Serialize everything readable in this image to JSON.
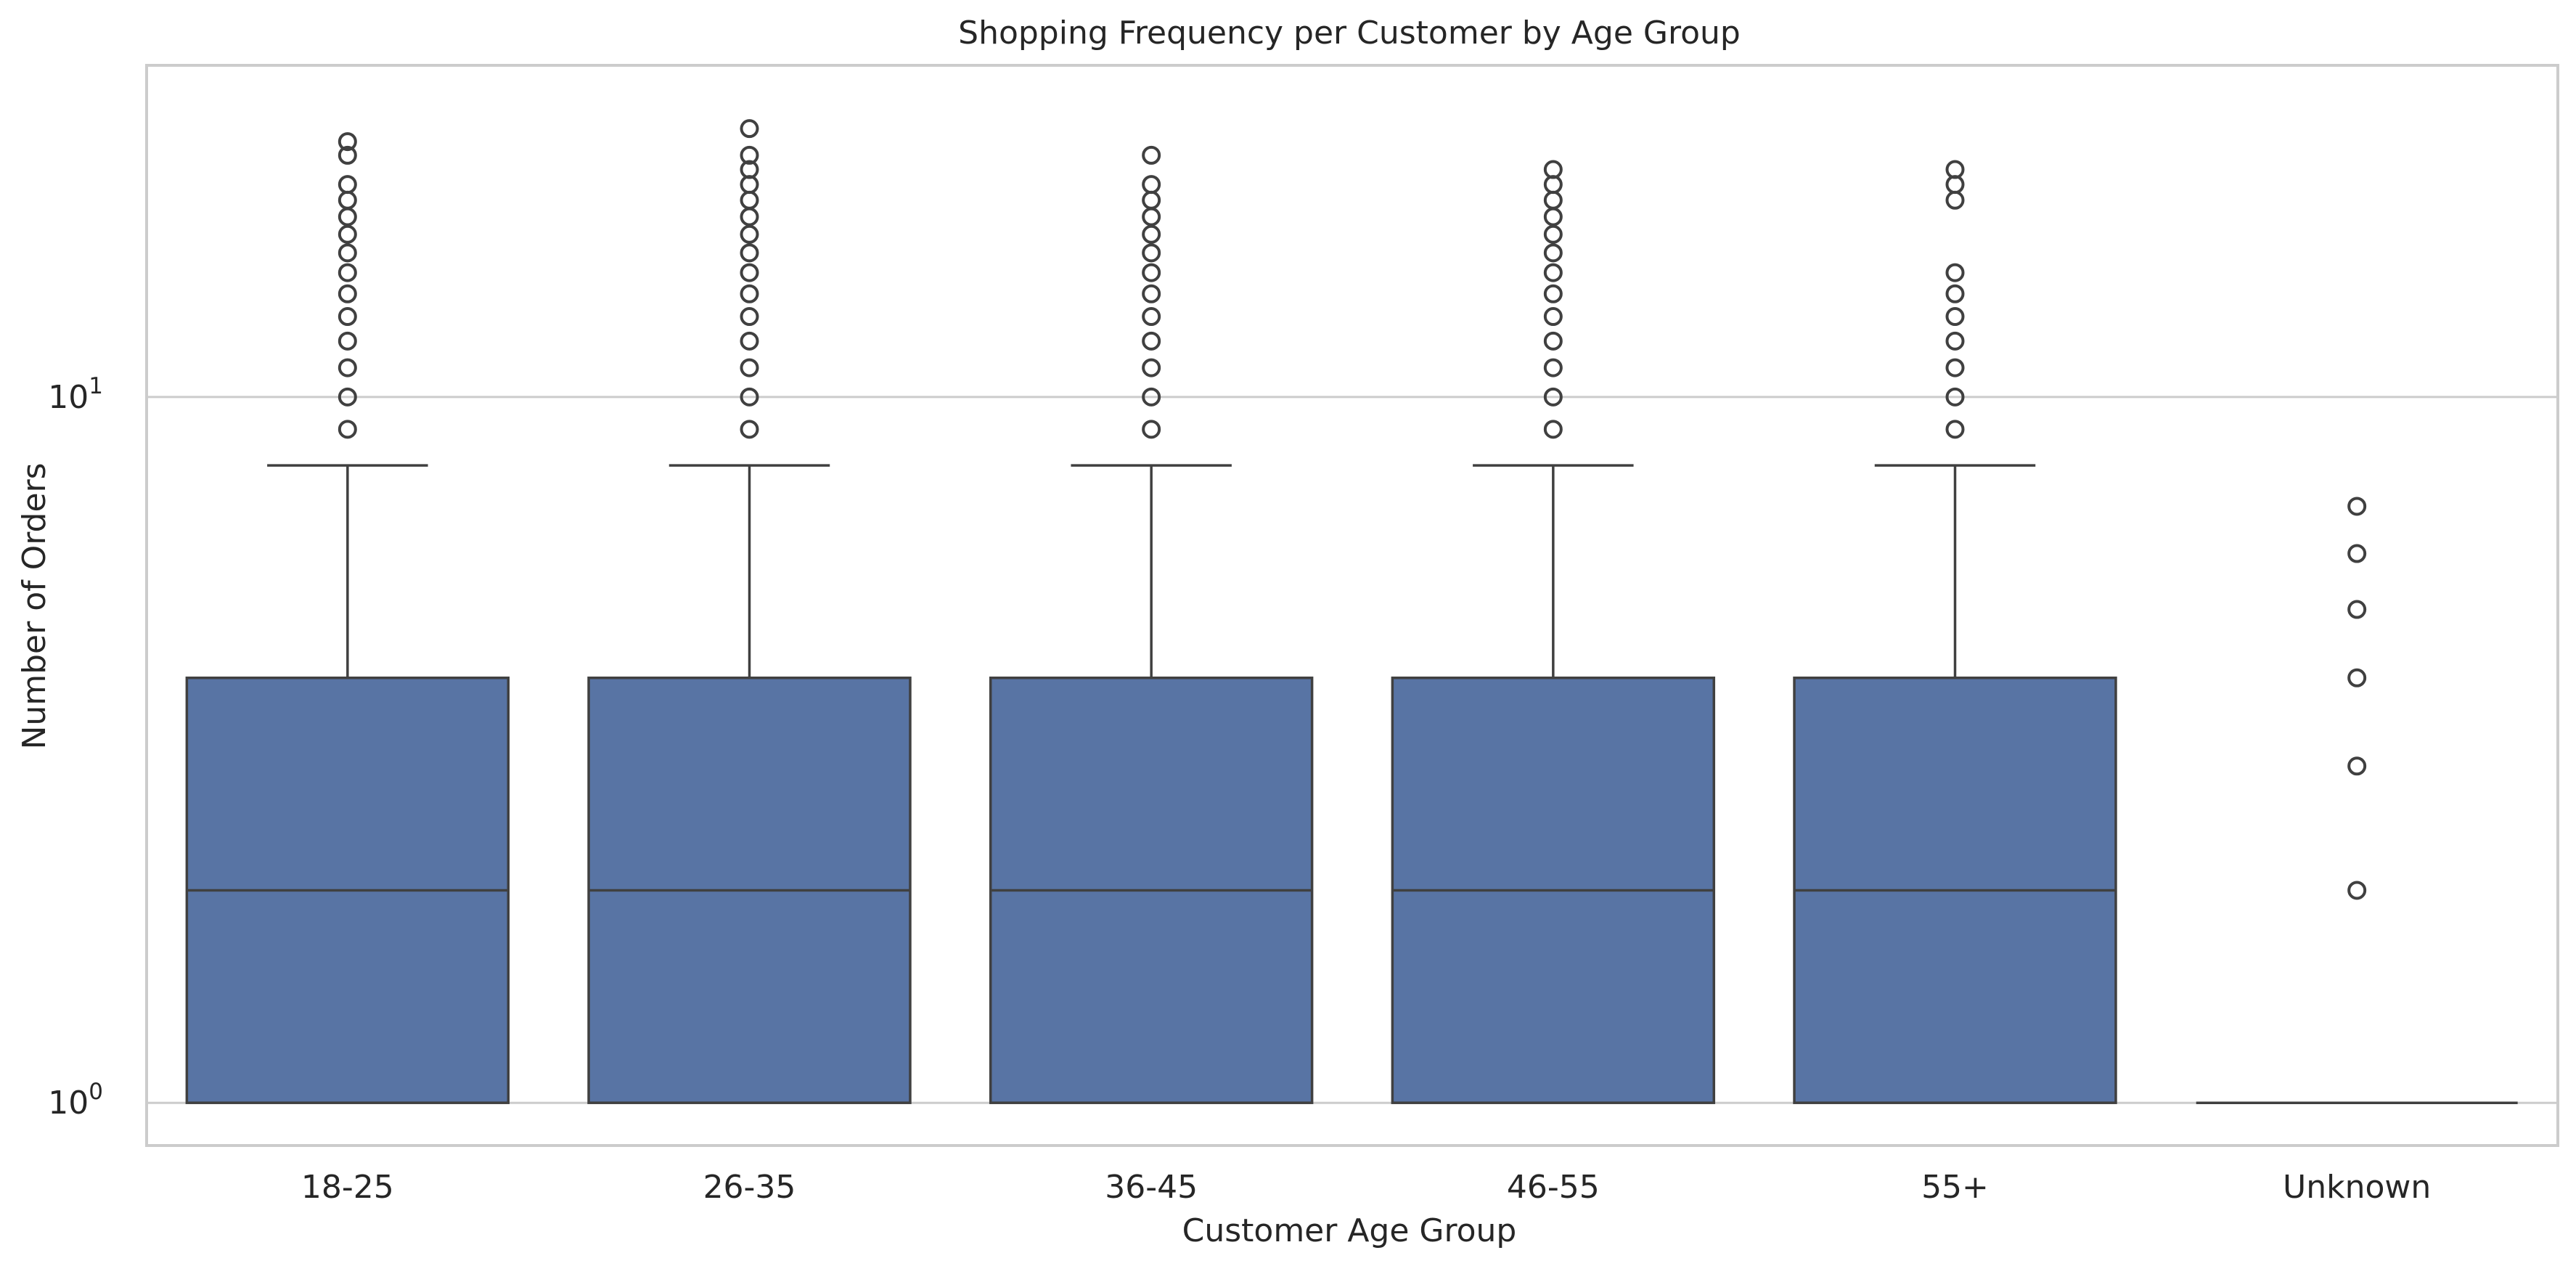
{
  "chart_data": {
    "type": "box",
    "title": "Shopping Frequency per Customer by Age Group",
    "xlabel": "Customer Age Group",
    "ylabel": "Number of Orders",
    "yscale": "log",
    "ylim": [
      0.87,
      29.5
    ],
    "yticks": [
      {
        "value": 1,
        "base": "10",
        "exp": "0"
      },
      {
        "value": 10,
        "base": "10",
        "exp": "1"
      }
    ],
    "grid": "y",
    "box_color": "#5874a4",
    "line_color": "#404040",
    "categories": [
      "18-25",
      "26-35",
      "36-45",
      "46-55",
      "55+",
      "Unknown"
    ],
    "boxes": [
      {
        "category": "18-25",
        "whislo": 1,
        "q1": 1,
        "median": 2,
        "q3": 4,
        "whishi": 8,
        "outliers": [
          9,
          10,
          11,
          12,
          13,
          14,
          15,
          16,
          17,
          18,
          19,
          20,
          22,
          23
        ]
      },
      {
        "category": "26-35",
        "whislo": 1,
        "q1": 1,
        "median": 2,
        "q3": 4,
        "whishi": 8,
        "outliers": [
          9,
          10,
          11,
          12,
          13,
          14,
          15,
          16,
          17,
          18,
          19,
          20,
          21,
          22,
          24
        ]
      },
      {
        "category": "36-45",
        "whislo": 1,
        "q1": 1,
        "median": 2,
        "q3": 4,
        "whishi": 8,
        "outliers": [
          9,
          10,
          11,
          12,
          13,
          14,
          15,
          16,
          17,
          18,
          19,
          20,
          22
        ]
      },
      {
        "category": "46-55",
        "whislo": 1,
        "q1": 1,
        "median": 2,
        "q3": 4,
        "whishi": 8,
        "outliers": [
          9,
          10,
          11,
          12,
          13,
          14,
          15,
          16,
          17,
          18,
          19,
          20,
          21
        ]
      },
      {
        "category": "55+",
        "whislo": 1,
        "q1": 1,
        "median": 2,
        "q3": 4,
        "whishi": 8,
        "outliers": [
          9,
          10,
          11,
          12,
          13,
          14,
          15,
          19,
          20,
          21
        ]
      },
      {
        "category": "Unknown",
        "whislo": 1,
        "q1": 1,
        "median": 1,
        "q3": 1,
        "whishi": 1,
        "outliers": [
          2,
          3,
          4,
          5,
          6,
          7
        ]
      }
    ]
  }
}
